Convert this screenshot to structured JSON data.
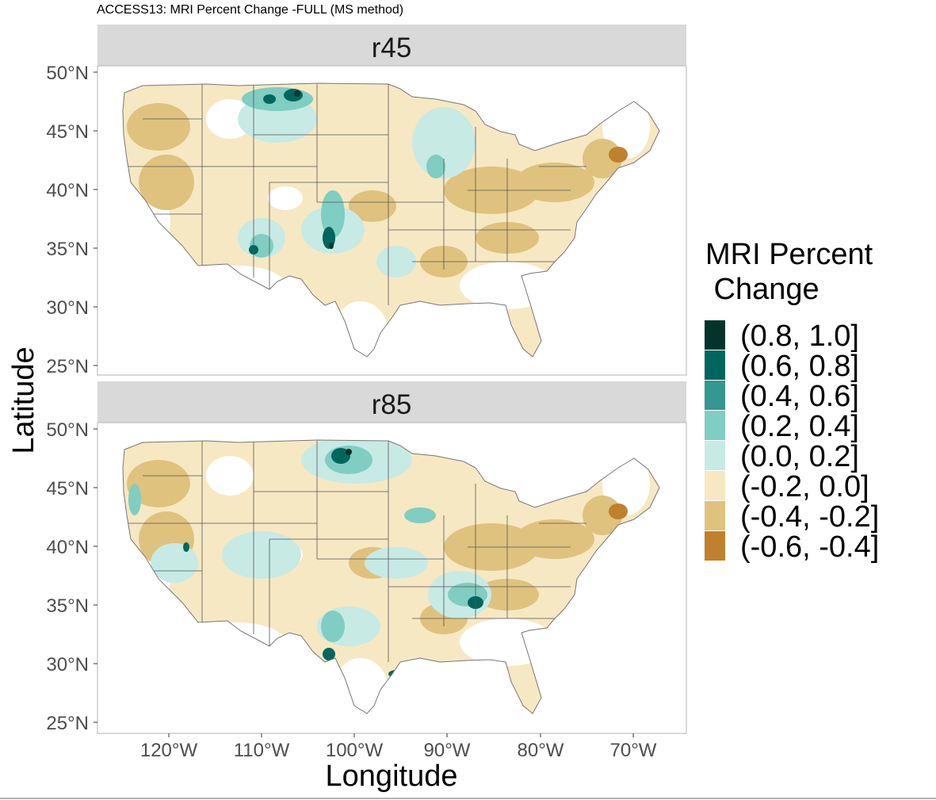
{
  "title": "ACCESS13: MRI Percent Change -FULL (MS method)",
  "panels": [
    {
      "label": "r45"
    },
    {
      "label": "r85"
    }
  ],
  "axes": {
    "xlabel": "Longitude",
    "ylabel": "Latitude",
    "x_ticks": [
      "120°W",
      "110°W",
      "100°W",
      "90°W",
      "80°W",
      "70°W"
    ],
    "y_ticks": [
      "50°N",
      "45°N",
      "40°N",
      "35°N",
      "30°N",
      "25°N"
    ]
  },
  "legend": {
    "title_line1": "MRI Percent",
    "title_line2": " Change",
    "items": [
      {
        "label": "(0.8, 1.0]",
        "color": "#01352c"
      },
      {
        "label": "(0.6, 0.8]",
        "color": "#01665e"
      },
      {
        "label": "(0.4, 0.6]",
        "color": "#35978f"
      },
      {
        "label": "(0.2, 0.4]",
        "color": "#80cdc1"
      },
      {
        "label": "(0.0, 0.2]",
        "color": "#c7eae5"
      },
      {
        "label": "(-0.2, 0.0]",
        "color": "#f6e8c3"
      },
      {
        "label": "(-0.4, -0.2]",
        "color": "#dfc27d"
      },
      {
        "label": "(-0.6, -0.4]",
        "color": "#bf812d"
      }
    ]
  }
}
